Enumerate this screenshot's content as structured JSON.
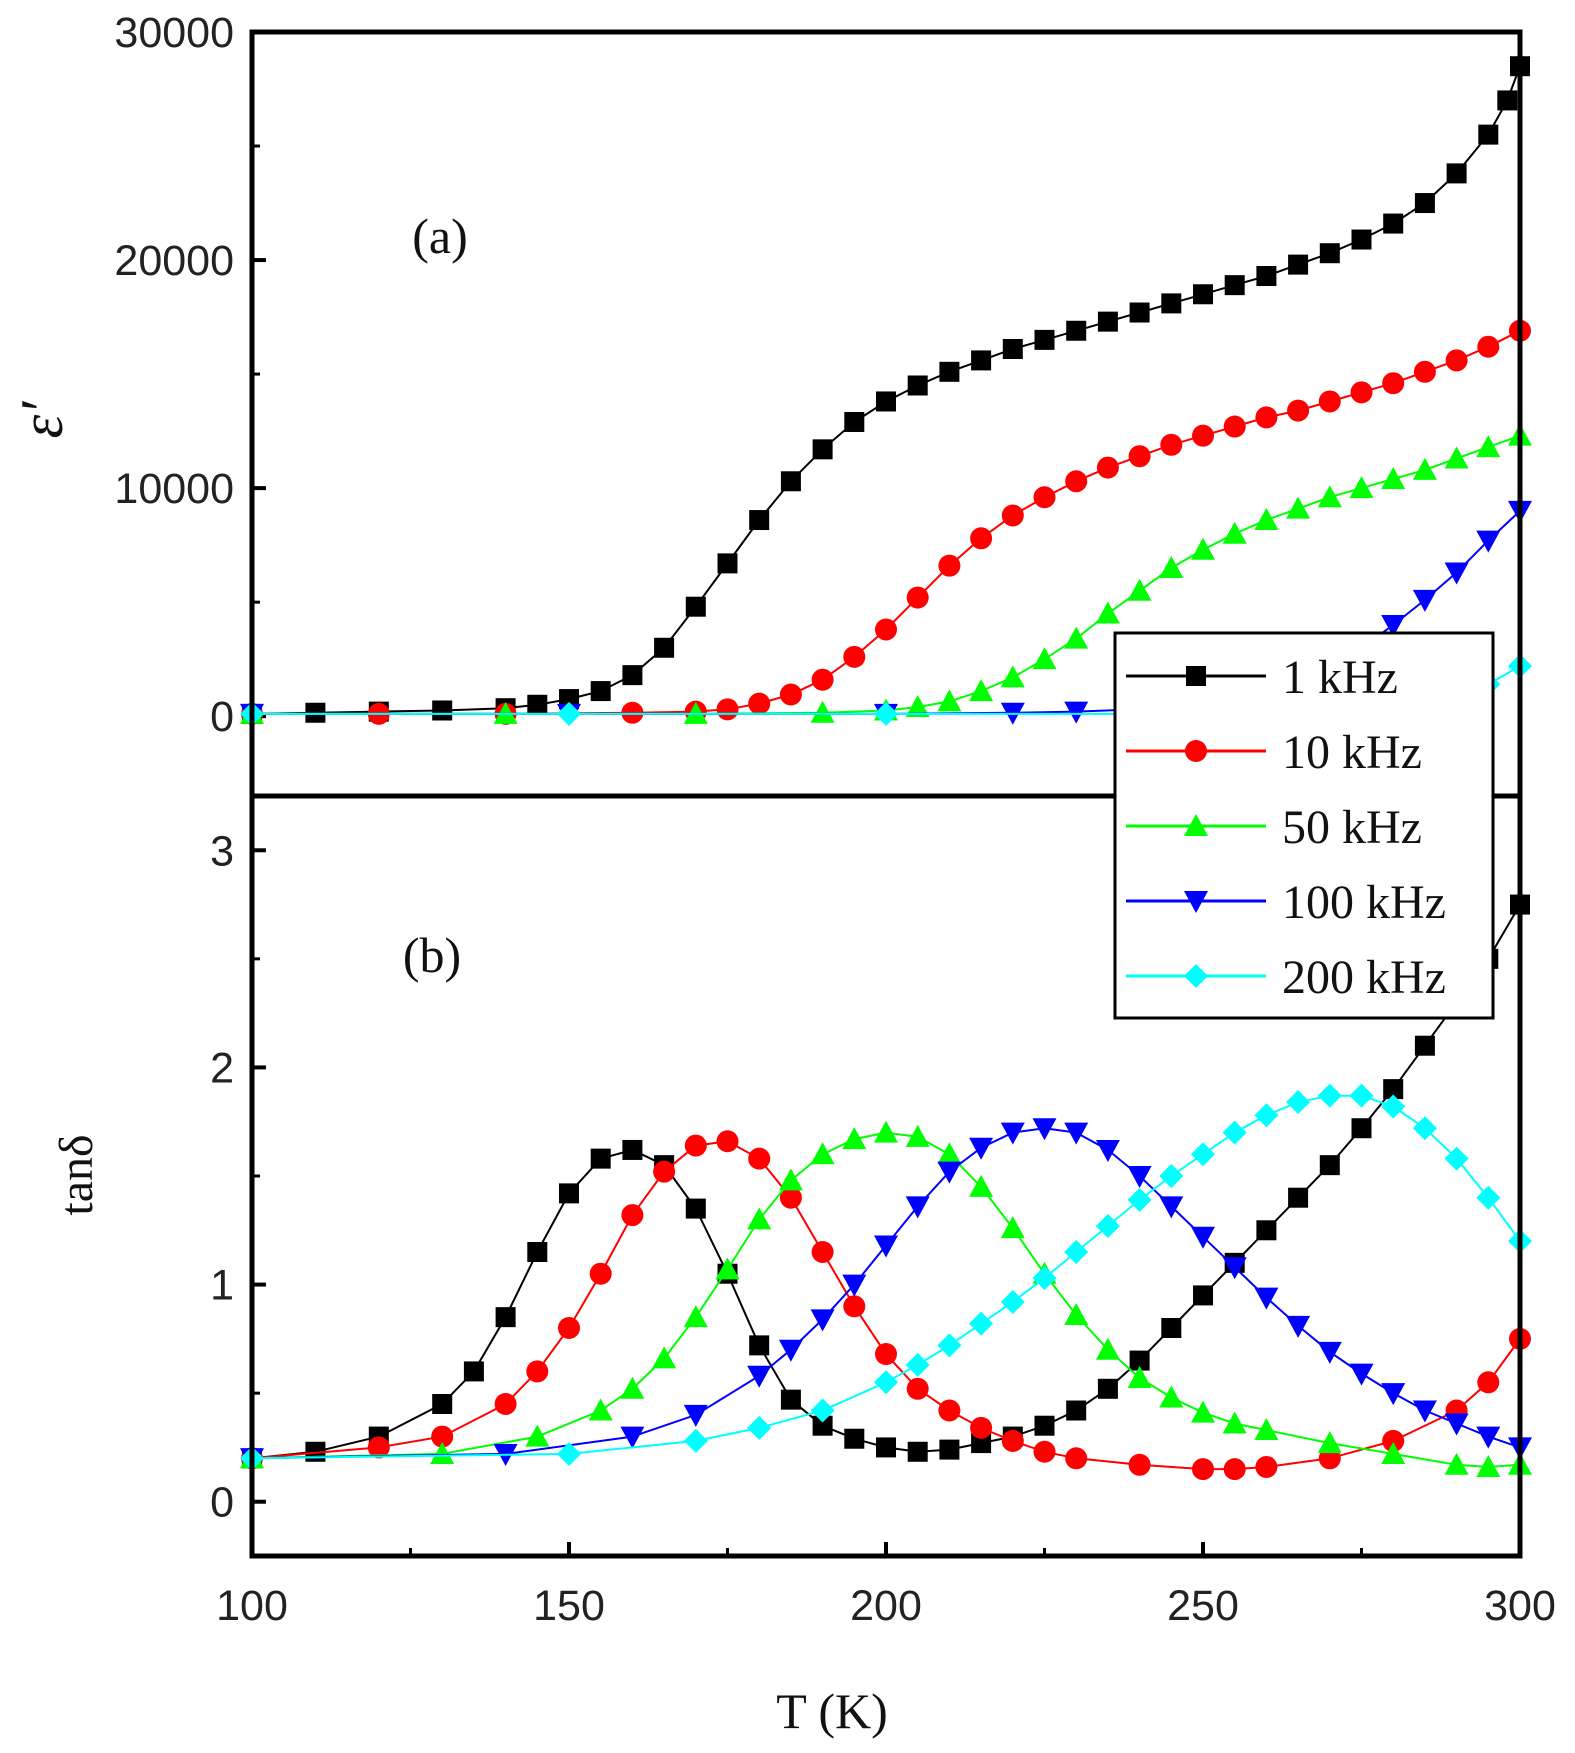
{
  "chart_data": [
    {
      "type": "scatter",
      "panel_label": "(a)",
      "ylabel": "ε′",
      "xlabel": "",
      "xlim": [
        100,
        300
      ],
      "ylim": [
        -3500,
        30000
      ],
      "grid": false,
      "x_ticks": [
        100,
        150,
        200,
        250,
        300
      ],
      "y_ticks": [
        0,
        10000,
        20000,
        30000
      ],
      "y_tick_labels": [
        "0",
        "10000",
        "20000",
        "30000"
      ],
      "series": [
        {
          "name": "1 kHz",
          "color": "#000000",
          "marker": "square",
          "x": [
            100,
            110,
            120,
            130,
            140,
            145,
            150,
            155,
            160,
            165,
            170,
            175,
            180,
            185,
            190,
            195,
            200,
            205,
            210,
            215,
            220,
            225,
            230,
            235,
            240,
            245,
            250,
            255,
            260,
            265,
            270,
            275,
            280,
            285,
            290,
            295,
            298,
            300
          ],
          "y": [
            100,
            150,
            200,
            250,
            350,
            500,
            750,
            1100,
            1800,
            3000,
            4800,
            6700,
            8600,
            10300,
            11700,
            12900,
            13800,
            14500,
            15100,
            15600,
            16100,
            16500,
            16900,
            17300,
            17700,
            18100,
            18500,
            18900,
            19300,
            19800,
            20300,
            20900,
            21600,
            22500,
            23800,
            25500,
            27000,
            28500
          ]
        },
        {
          "name": "10 kHz",
          "color": "#ff0000",
          "marker": "circle",
          "x": [
            100,
            120,
            140,
            160,
            170,
            175,
            180,
            185,
            190,
            195,
            200,
            205,
            210,
            215,
            220,
            225,
            230,
            235,
            240,
            245,
            250,
            255,
            260,
            265,
            270,
            275,
            280,
            285,
            290,
            295,
            300
          ],
          "y": [
            100,
            100,
            100,
            150,
            200,
            300,
            550,
            950,
            1600,
            2600,
            3800,
            5200,
            6600,
            7800,
            8800,
            9600,
            10300,
            10900,
            11400,
            11900,
            12300,
            12700,
            13100,
            13400,
            13800,
            14200,
            14600,
            15100,
            15600,
            16200,
            16900
          ]
        },
        {
          "name": "50 kHz",
          "color": "#00ff00",
          "marker": "triangle-up",
          "x": [
            100,
            140,
            170,
            190,
            200,
            205,
            210,
            215,
            220,
            225,
            230,
            235,
            240,
            245,
            250,
            255,
            260,
            265,
            270,
            275,
            280,
            285,
            290,
            295,
            300
          ],
          "y": [
            100,
            100,
            100,
            150,
            250,
            400,
            650,
            1100,
            1700,
            2500,
            3400,
            4500,
            5500,
            6500,
            7300,
            8000,
            8600,
            9100,
            9600,
            10000,
            10400,
            10800,
            11300,
            11800,
            12300
          ]
        },
        {
          "name": "100 kHz",
          "color": "#0000ff",
          "marker": "triangle-down",
          "x": [
            100,
            150,
            200,
            220,
            230,
            240,
            250,
            255,
            260,
            265,
            270,
            275,
            280,
            285,
            290,
            295,
            300
          ],
          "y": [
            100,
            100,
            100,
            150,
            200,
            300,
            500,
            700,
            1000,
            1500,
            2200,
            3000,
            4000,
            5100,
            6300,
            7700,
            9000
          ]
        },
        {
          "name": "200 kHz",
          "color": "#00ffff",
          "marker": "diamond",
          "x": [
            100,
            150,
            200,
            240,
            260,
            270,
            280,
            285,
            290,
            295,
            300
          ],
          "y": [
            100,
            100,
            100,
            100,
            150,
            200,
            350,
            550,
            900,
            1400,
            2200
          ]
        }
      ]
    },
    {
      "type": "scatter",
      "panel_label": "(b)",
      "ylabel": "tanδ",
      "xlabel": "T (K)",
      "xlim": [
        100,
        300
      ],
      "ylim": [
        -0.25,
        3.25
      ],
      "grid": false,
      "x_ticks": [
        100,
        150,
        200,
        250,
        300
      ],
      "x_tick_labels": [
        "100",
        "150",
        "200",
        "250",
        "300"
      ],
      "y_ticks": [
        0,
        1,
        2,
        3
      ],
      "y_tick_labels": [
        "0",
        "1",
        "2",
        "3"
      ],
      "series": [
        {
          "name": "1 kHz",
          "color": "#000000",
          "marker": "square",
          "x": [
            100,
            110,
            120,
            130,
            135,
            140,
            145,
            150,
            155,
            160,
            165,
            170,
            175,
            180,
            185,
            190,
            195,
            200,
            205,
            210,
            215,
            220,
            225,
            230,
            235,
            240,
            245,
            250,
            255,
            260,
            265,
            270,
            275,
            280,
            285,
            290,
            295,
            300
          ],
          "y": [
            0.2,
            0.23,
            0.3,
            0.45,
            0.6,
            0.85,
            1.15,
            1.42,
            1.58,
            1.62,
            1.55,
            1.35,
            1.05,
            0.72,
            0.47,
            0.35,
            0.29,
            0.25,
            0.23,
            0.24,
            0.27,
            0.3,
            0.35,
            0.42,
            0.52,
            0.65,
            0.8,
            0.95,
            1.1,
            1.25,
            1.4,
            1.55,
            1.72,
            1.9,
            2.1,
            2.3,
            2.5,
            2.75
          ]
        },
        {
          "name": "10 kHz",
          "color": "#ff0000",
          "marker": "circle",
          "x": [
            100,
            120,
            130,
            140,
            145,
            150,
            155,
            160,
            165,
            170,
            175,
            180,
            185,
            190,
            195,
            200,
            205,
            210,
            215,
            220,
            225,
            230,
            240,
            250,
            255,
            260,
            270,
            280,
            290,
            295,
            300
          ],
          "y": [
            0.2,
            0.25,
            0.3,
            0.45,
            0.6,
            0.8,
            1.05,
            1.32,
            1.52,
            1.64,
            1.66,
            1.58,
            1.4,
            1.15,
            0.9,
            0.68,
            0.52,
            0.42,
            0.34,
            0.28,
            0.23,
            0.2,
            0.17,
            0.15,
            0.15,
            0.16,
            0.2,
            0.28,
            0.42,
            0.55,
            0.75
          ]
        },
        {
          "name": "50 kHz",
          "color": "#00ff00",
          "marker": "triangle-up",
          "x": [
            100,
            130,
            145,
            155,
            160,
            165,
            170,
            175,
            180,
            185,
            190,
            195,
            200,
            205,
            210,
            215,
            220,
            225,
            230,
            235,
            240,
            245,
            250,
            255,
            260,
            270,
            280,
            290,
            295,
            300
          ],
          "y": [
            0.2,
            0.22,
            0.3,
            0.42,
            0.52,
            0.66,
            0.85,
            1.07,
            1.3,
            1.48,
            1.6,
            1.67,
            1.7,
            1.68,
            1.6,
            1.45,
            1.26,
            1.05,
            0.86,
            0.7,
            0.57,
            0.48,
            0.41,
            0.36,
            0.33,
            0.27,
            0.22,
            0.17,
            0.16,
            0.17
          ]
        },
        {
          "name": "100 kHz",
          "color": "#0000ff",
          "marker": "triangle-down",
          "x": [
            100,
            140,
            160,
            170,
            180,
            185,
            190,
            195,
            200,
            205,
            210,
            215,
            220,
            225,
            230,
            235,
            240,
            245,
            250,
            255,
            260,
            265,
            270,
            275,
            280,
            285,
            290,
            295,
            300
          ],
          "y": [
            0.2,
            0.22,
            0.3,
            0.4,
            0.58,
            0.7,
            0.84,
            1.0,
            1.18,
            1.36,
            1.52,
            1.63,
            1.7,
            1.72,
            1.7,
            1.62,
            1.5,
            1.36,
            1.22,
            1.08,
            0.94,
            0.81,
            0.69,
            0.59,
            0.5,
            0.42,
            0.36,
            0.3,
            0.25
          ]
        },
        {
          "name": "200 kHz",
          "color": "#00ffff",
          "marker": "diamond",
          "x": [
            100,
            150,
            170,
            180,
            190,
            200,
            205,
            210,
            215,
            220,
            225,
            230,
            235,
            240,
            245,
            250,
            255,
            260,
            265,
            270,
            275,
            280,
            285,
            290,
            295,
            300
          ],
          "y": [
            0.2,
            0.22,
            0.28,
            0.34,
            0.42,
            0.55,
            0.63,
            0.72,
            0.82,
            0.92,
            1.03,
            1.15,
            1.27,
            1.39,
            1.5,
            1.6,
            1.7,
            1.78,
            1.84,
            1.87,
            1.87,
            1.82,
            1.72,
            1.58,
            1.4,
            1.2
          ]
        }
      ]
    }
  ],
  "legend": {
    "placement": "right, spanning panels (a) and (b)",
    "entries": [
      "1 kHz",
      "10 kHz",
      "50 kHz",
      "100 kHz",
      "200 kHz"
    ]
  }
}
